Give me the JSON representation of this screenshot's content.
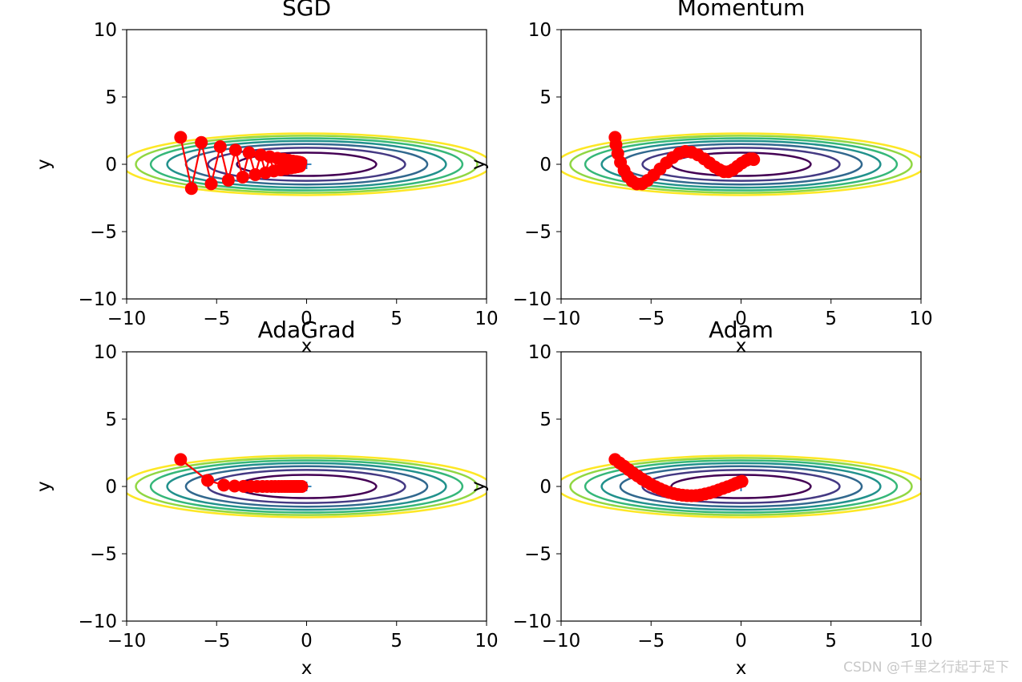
{
  "chart_data": [
    {
      "type": "line",
      "title": "SGD",
      "xlabel": "x",
      "ylabel": "y",
      "xlim": [
        -10,
        10
      ],
      "ylim": [
        -10,
        10
      ],
      "xticks": [
        -10,
        -5,
        0,
        5,
        10
      ],
      "yticks": [
        -10,
        -5,
        0,
        5,
        10
      ],
      "xtick_labels": [
        "−10",
        "−5",
        "0",
        "5",
        "10"
      ],
      "ytick_labels": [
        "−10",
        "−5",
        "0",
        "5",
        "10"
      ],
      "contour_levels": [
        0.75,
        1.5,
        2.25,
        3.0,
        3.75,
        4.5,
        5.25
      ],
      "minimum_marker": {
        "x": 0,
        "y": 0
      },
      "path": {
        "x": [
          -7.0,
          -6.4,
          -5.85,
          -5.3,
          -4.8,
          -4.35,
          -3.95,
          -3.55,
          -3.2,
          -2.85,
          -2.55,
          -2.28,
          -2.05,
          -1.82,
          -1.62,
          -1.44,
          -1.28,
          -1.13,
          -1.0,
          -0.88,
          -0.77,
          -0.67,
          -0.58,
          -0.5,
          -0.43,
          -0.37,
          -0.32
        ],
        "y": [
          2.0,
          -1.8,
          1.62,
          -1.45,
          1.31,
          -1.18,
          1.06,
          -0.95,
          0.86,
          -0.77,
          0.69,
          -0.63,
          0.56,
          -0.5,
          0.45,
          -0.41,
          0.37,
          -0.33,
          0.3,
          -0.27,
          0.24,
          -0.22,
          0.2,
          -0.18,
          0.16,
          -0.14,
          0.13
        ]
      }
    },
    {
      "type": "line",
      "title": "Momentum",
      "xlabel": "x",
      "ylabel": "y",
      "xlim": [
        -10,
        10
      ],
      "ylim": [
        -10,
        10
      ],
      "xticks": [
        -10,
        -5,
        0,
        5,
        10
      ],
      "yticks": [
        -10,
        -5,
        0,
        5,
        10
      ],
      "xtick_labels": [
        "−10",
        "−5",
        "0",
        "5",
        "10"
      ],
      "ytick_labels": [
        "−10",
        "−5",
        "0",
        "5",
        "10"
      ],
      "contour_levels": [
        0.75,
        1.5,
        2.25,
        3.0,
        3.75,
        4.5,
        5.25
      ],
      "minimum_marker": {
        "x": 0,
        "y": 0
      },
      "path": {
        "x": [
          -7.0,
          -6.95,
          -6.85,
          -6.7,
          -6.5,
          -6.3,
          -6.05,
          -5.8,
          -5.5,
          -5.2,
          -4.85,
          -4.5,
          -4.15,
          -3.8,
          -3.45,
          -3.1,
          -2.75,
          -2.4,
          -2.05,
          -1.75,
          -1.45,
          -1.2,
          -0.95,
          -0.7,
          -0.45,
          -0.2,
          0.05,
          0.3,
          0.5,
          0.65,
          0.7
        ],
        "y": [
          2.0,
          1.45,
          0.8,
          0.15,
          -0.45,
          -0.9,
          -1.25,
          -1.45,
          -1.45,
          -1.2,
          -0.8,
          -0.35,
          0.1,
          0.5,
          0.8,
          0.95,
          0.9,
          0.7,
          0.4,
          0.1,
          -0.2,
          -0.4,
          -0.55,
          -0.55,
          -0.4,
          -0.15,
          0.1,
          0.3,
          0.4,
          0.4,
          0.35
        ]
      }
    },
    {
      "type": "line",
      "title": "AdaGrad",
      "xlabel": "x",
      "ylabel": "y",
      "xlim": [
        -10,
        10
      ],
      "ylim": [
        -10,
        10
      ],
      "xticks": [
        -10,
        -5,
        0,
        5,
        10
      ],
      "yticks": [
        -10,
        -5,
        0,
        5,
        10
      ],
      "xtick_labels": [
        "−10",
        "−5",
        "0",
        "5",
        "10"
      ],
      "ytick_labels": [
        "−10",
        "−5",
        "0",
        "5",
        "10"
      ],
      "contour_levels": [
        0.75,
        1.5,
        2.25,
        3.0,
        3.75,
        4.5,
        5.25
      ],
      "minimum_marker": {
        "x": 0,
        "y": 0
      },
      "path": {
        "x": [
          -7.0,
          -5.5,
          -4.6,
          -4.0,
          -3.5,
          -3.1,
          -2.75,
          -2.45,
          -2.2,
          -1.95,
          -1.75,
          -1.55,
          -1.38,
          -1.22,
          -1.08,
          -0.95,
          -0.84,
          -0.74,
          -0.65,
          -0.57,
          -0.5,
          -0.44,
          -0.39,
          -0.34,
          -0.3,
          -0.27
        ],
        "y": [
          2.0,
          0.45,
          0.1,
          0.03,
          0.01,
          0.0,
          0.0,
          0.0,
          0.0,
          0.0,
          0.0,
          0.0,
          0.0,
          0.0,
          0.0,
          0.0,
          0.0,
          0.0,
          0.0,
          0.0,
          0.0,
          0.0,
          0.0,
          0.0,
          0.0,
          0.0
        ]
      }
    },
    {
      "type": "line",
      "title": "Adam",
      "xlabel": "x",
      "ylabel": "y",
      "xlim": [
        -10,
        10
      ],
      "ylim": [
        -10,
        10
      ],
      "xticks": [
        -10,
        -5,
        0,
        5,
        10
      ],
      "yticks": [
        -10,
        -5,
        0,
        5,
        10
      ],
      "xtick_labels": [
        "−10",
        "−5",
        "0",
        "5",
        "10"
      ],
      "ytick_labels": [
        "−10",
        "−5",
        "0",
        "5",
        "10"
      ],
      "contour_levels": [
        0.75,
        1.5,
        2.25,
        3.0,
        3.75,
        4.5,
        5.25
      ],
      "minimum_marker": {
        "x": 0,
        "y": 0
      },
      "path": {
        "x": [
          -7.0,
          -6.75,
          -6.5,
          -6.25,
          -6.0,
          -5.75,
          -5.5,
          -5.25,
          -5.0,
          -4.75,
          -4.5,
          -4.25,
          -4.0,
          -3.75,
          -3.5,
          -3.25,
          -3.0,
          -2.75,
          -2.5,
          -2.25,
          -2.0,
          -1.75,
          -1.5,
          -1.25,
          -1.0,
          -0.75,
          -0.5,
          -0.3,
          -0.1,
          0.05
        ],
        "y": [
          2.0,
          1.75,
          1.5,
          1.25,
          1.0,
          0.78,
          0.55,
          0.35,
          0.15,
          -0.02,
          -0.18,
          -0.32,
          -0.44,
          -0.53,
          -0.6,
          -0.65,
          -0.68,
          -0.69,
          -0.68,
          -0.63,
          -0.56,
          -0.48,
          -0.38,
          -0.26,
          -0.14,
          -0.02,
          0.1,
          0.22,
          0.32,
          0.38
        ]
      }
    }
  ],
  "watermark": "CSDN @千里之行起于足下",
  "colors": {
    "path": "#ff0000",
    "minimum_marker": "#1f77b4",
    "axes": "#000000",
    "contours": [
      "#440154",
      "#443983",
      "#31688e",
      "#21918c",
      "#35b779",
      "#90d743",
      "#fde725"
    ]
  }
}
